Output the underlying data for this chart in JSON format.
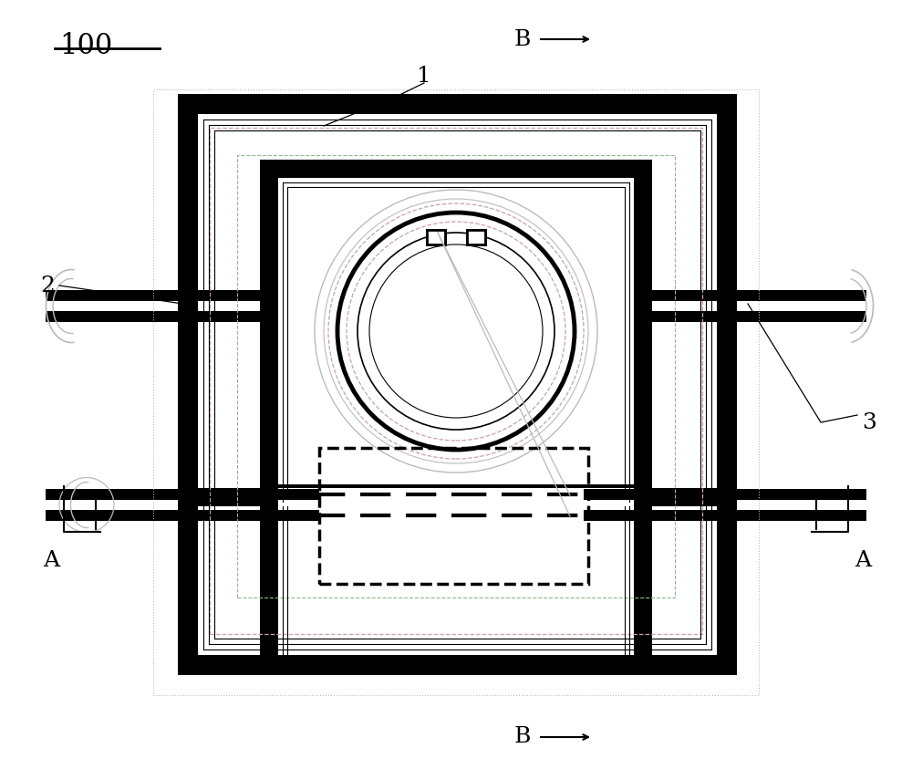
{
  "bg_color": "#ffffff",
  "black": "#000000",
  "gray": "#999999",
  "lgray": "#bbbbbb",
  "pink": "#c8a0b0",
  "figw": 10.0,
  "figh": 8.43,
  "label_100": "100",
  "label_1": "1",
  "label_2": "2",
  "label_3": "3",
  "label_A": "A",
  "label_B": "B"
}
